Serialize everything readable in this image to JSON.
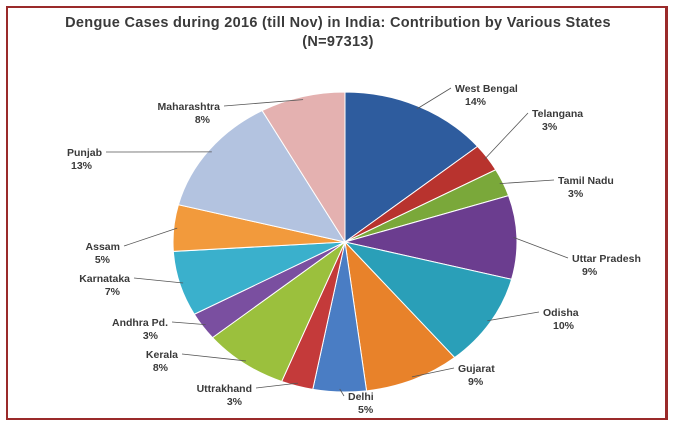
{
  "chart_data": {
    "type": "pie",
    "title": "Dengue Cases during 2016 (till Nov) in India: Contribution by Various States",
    "subtitle": "(N=97313)",
    "slices": [
      {
        "label": "West Bengal",
        "value": 14,
        "value_label": "14%",
        "color": "#2e5c9e"
      },
      {
        "label": "Telangana",
        "value": 3,
        "value_label": "3%",
        "color": "#b8332e"
      },
      {
        "label": "Tamil Nadu",
        "value": 3,
        "value_label": "3%",
        "color": "#7aa83a"
      },
      {
        "label": "Uttar Pradesh",
        "value": 9,
        "value_label": "9%",
        "color": "#6b3d8f"
      },
      {
        "label": "Odisha",
        "value": 10,
        "value_label": "10%",
        "color": "#2a9fb8"
      },
      {
        "label": "Gujarat",
        "value": 9,
        "value_label": "9%",
        "color": "#e8822a"
      },
      {
        "label": "Delhi",
        "value": 5,
        "value_label": "5%",
        "color": "#4a7dc4"
      },
      {
        "label": "Uttrakhand",
        "value": 3,
        "value_label": "3%",
        "color": "#c43a3a"
      },
      {
        "label": "Kerala",
        "value": 8,
        "value_label": "8%",
        "color": "#9bc03d"
      },
      {
        "label": "Andhra Pd.",
        "value": 3,
        "value_label": "3%",
        "color": "#7a4fa0"
      },
      {
        "label": "Karnataka",
        "value": 7,
        "value_label": "7%",
        "color": "#3ab0cc"
      },
      {
        "label": "Assam",
        "value": 5,
        "value_label": "5%",
        "color": "#f29a3c"
      },
      {
        "label": "Punjab",
        "value": 13,
        "value_label": "13%",
        "color": "#b3c3e0"
      },
      {
        "label": "Maharashtra",
        "value": 8,
        "value_label": "8%",
        "color": "#e4b1b0"
      }
    ],
    "legend": "none"
  }
}
